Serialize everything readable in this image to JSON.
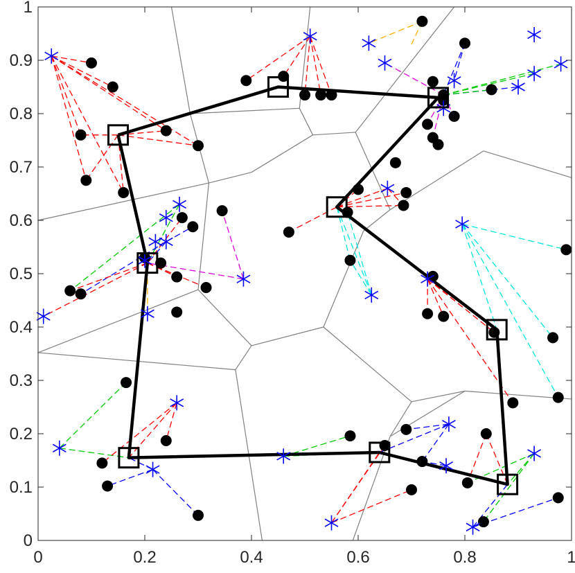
{
  "chart_data": {
    "type": "scatter",
    "title": "",
    "xlabel": "",
    "ylabel": "",
    "xlim": [
      0,
      1
    ],
    "ylim": [
      0,
      1
    ],
    "xticks": [
      0,
      0.2,
      0.4,
      0.6,
      0.8,
      1
    ],
    "xtick_labels": [
      "0",
      "0.2",
      "0.4",
      "0.6",
      "0.8",
      "1"
    ],
    "yticks": [
      0,
      0.1,
      0.2,
      0.3,
      0.4,
      0.5,
      0.6,
      0.7,
      0.8,
      0.9,
      1
    ],
    "ytick_labels": [
      "0",
      "0.1",
      "0.2",
      "0.3",
      "0.4",
      "0.5",
      "0.6",
      "0.7",
      "0.8",
      "0.9",
      "1"
    ],
    "grid": false,
    "box": true,
    "colors": {
      "route": "#000000",
      "voronoi": "#808080",
      "stars": "#0000ff",
      "red": "#ff0000",
      "green": "#00cc00",
      "blue": "#0000ff",
      "cyan": "#00e5e5",
      "magenta": "#dd00dd",
      "orange": "#ffb000"
    },
    "voronoi_edges": [
      [
        [
          0.25,
          1.0
        ],
        [
          0.285,
          0.8
        ]
      ],
      [
        [
          0.285,
          0.8
        ],
        [
          0.32,
          0.67
        ]
      ],
      [
        [
          0.285,
          0.8
        ],
        [
          0.49,
          0.81
        ]
      ],
      [
        [
          0.49,
          0.81
        ],
        [
          0.51,
          1.0
        ]
      ],
      [
        [
          0.49,
          0.81
        ],
        [
          0.515,
          0.76
        ]
      ],
      [
        [
          0.515,
          0.76
        ],
        [
          0.595,
          0.765
        ]
      ],
      [
        [
          0.595,
          0.765
        ],
        [
          0.66,
          0.62
        ]
      ],
      [
        [
          0.595,
          0.765
        ],
        [
          0.78,
          1.0
        ]
      ],
      [
        [
          0.515,
          0.76
        ],
        [
          0.4,
          0.69
        ]
      ],
      [
        [
          0.4,
          0.69
        ],
        [
          0.32,
          0.67
        ]
      ],
      [
        [
          0.32,
          0.67
        ],
        [
          0.0,
          0.6
        ]
      ],
      [
        [
          0.32,
          0.67
        ],
        [
          0.3,
          0.47
        ]
      ],
      [
        [
          0.3,
          0.47
        ],
        [
          0.4,
          0.365
        ]
      ],
      [
        [
          0.3,
          0.47
        ],
        [
          0.0,
          0.352
        ]
      ],
      [
        [
          0.4,
          0.365
        ],
        [
          0.37,
          0.32
        ]
      ],
      [
        [
          0.37,
          0.32
        ],
        [
          0.0,
          0.352
        ]
      ],
      [
        [
          0.37,
          0.32
        ],
        [
          0.42,
          0.0
        ]
      ],
      [
        [
          0.4,
          0.365
        ],
        [
          0.535,
          0.4
        ]
      ],
      [
        [
          0.535,
          0.4
        ],
        [
          0.61,
          0.58
        ]
      ],
      [
        [
          0.66,
          0.62
        ],
        [
          0.61,
          0.58
        ]
      ],
      [
        [
          0.535,
          0.4
        ],
        [
          0.7,
          0.26
        ]
      ],
      [
        [
          0.66,
          0.62
        ],
        [
          0.835,
          0.73
        ]
      ],
      [
        [
          0.835,
          0.73
        ],
        [
          1.0,
          0.68
        ]
      ],
      [
        [
          0.7,
          0.26
        ],
        [
          0.66,
          0.195
        ]
      ],
      [
        [
          0.7,
          0.26
        ],
        [
          0.8,
          0.28
        ]
      ],
      [
        [
          0.8,
          0.28
        ],
        [
          1.0,
          0.265
        ]
      ],
      [
        [
          0.66,
          0.195
        ],
        [
          0.59,
          0.0
        ]
      ],
      [
        [
          0.66,
          0.195
        ],
        [
          0.8,
          0.28
        ]
      ]
    ],
    "route": [
      [
        0.15,
        0.76
      ],
      [
        0.45,
        0.85
      ],
      [
        0.75,
        0.83
      ],
      [
        0.56,
        0.625
      ],
      [
        0.86,
        0.395
      ],
      [
        0.88,
        0.105
      ],
      [
        0.64,
        0.165
      ],
      [
        0.17,
        0.155
      ],
      [
        0.205,
        0.52
      ],
      [
        0.15,
        0.76
      ]
    ],
    "centers": [
      [
        0.15,
        0.76
      ],
      [
        0.45,
        0.85
      ],
      [
        0.75,
        0.83
      ],
      [
        0.56,
        0.625
      ],
      [
        0.86,
        0.395
      ],
      [
        0.88,
        0.105
      ],
      [
        0.64,
        0.165
      ],
      [
        0.17,
        0.155
      ],
      [
        0.205,
        0.52
      ]
    ],
    "dots": [
      [
        0.1,
        0.895
      ],
      [
        0.14,
        0.85
      ],
      [
        0.08,
        0.76
      ],
      [
        0.09,
        0.675
      ],
      [
        0.16,
        0.652
      ],
      [
        0.24,
        0.768
      ],
      [
        0.3,
        0.74
      ],
      [
        0.39,
        0.862
      ],
      [
        0.46,
        0.87
      ],
      [
        0.5,
        0.835
      ],
      [
        0.53,
        0.835
      ],
      [
        0.55,
        0.835
      ],
      [
        0.72,
        0.973
      ],
      [
        0.8,
        0.932
      ],
      [
        0.85,
        0.845
      ],
      [
        0.74,
        0.86
      ],
      [
        0.76,
        0.825
      ],
      [
        0.73,
        0.78
      ],
      [
        0.74,
        0.755
      ],
      [
        0.75,
        0.742
      ],
      [
        0.78,
        0.795
      ],
      [
        0.76,
        0.835
      ],
      [
        0.67,
        0.708
      ],
      [
        0.6,
        0.658
      ],
      [
        0.58,
        0.615
      ],
      [
        0.47,
        0.578
      ],
      [
        0.69,
        0.652
      ],
      [
        0.685,
        0.628
      ],
      [
        0.585,
        0.525
      ],
      [
        0.74,
        0.495
      ],
      [
        0.73,
        0.425
      ],
      [
        0.76,
        0.42
      ],
      [
        0.855,
        0.39
      ],
      [
        0.965,
        0.38
      ],
      [
        0.99,
        0.545
      ],
      [
        0.975,
        0.268
      ],
      [
        0.89,
        0.258
      ],
      [
        0.84,
        0.2
      ],
      [
        0.805,
        0.108
      ],
      [
        0.835,
        0.035
      ],
      [
        0.975,
        0.08
      ],
      [
        0.585,
        0.196
      ],
      [
        0.69,
        0.208
      ],
      [
        0.65,
        0.178
      ],
      [
        0.72,
        0.148
      ],
      [
        0.7,
        0.095
      ],
      [
        0.165,
        0.296
      ],
      [
        0.24,
        0.187
      ],
      [
        0.12,
        0.145
      ],
      [
        0.13,
        0.102
      ],
      [
        0.3,
        0.047
      ],
      [
        0.345,
        0.618
      ],
      [
        0.27,
        0.605
      ],
      [
        0.29,
        0.588
      ],
      [
        0.2,
        0.53
      ],
      [
        0.23,
        0.52
      ],
      [
        0.26,
        0.494
      ],
      [
        0.26,
        0.428
      ],
      [
        0.315,
        0.474
      ],
      [
        0.06,
        0.468
      ],
      [
        0.08,
        0.462
      ]
    ],
    "stars": [
      [
        0.025,
        0.908
      ],
      [
        0.51,
        0.945
      ],
      [
        0.62,
        0.932
      ],
      [
        0.65,
        0.895
      ],
      [
        0.78,
        0.862
      ],
      [
        0.93,
        0.948
      ],
      [
        0.98,
        0.893
      ],
      [
        0.93,
        0.875
      ],
      [
        0.9,
        0.85
      ],
      [
        0.76,
        0.81
      ],
      [
        0.655,
        0.66
      ],
      [
        0.625,
        0.46
      ],
      [
        0.795,
        0.593
      ],
      [
        0.73,
        0.49
      ],
      [
        0.93,
        0.163
      ],
      [
        0.815,
        0.025
      ],
      [
        0.77,
        0.218
      ],
      [
        0.765,
        0.14
      ],
      [
        0.46,
        0.158
      ],
      [
        0.55,
        0.033
      ],
      [
        0.26,
        0.258
      ],
      [
        0.215,
        0.133
      ],
      [
        0.04,
        0.173
      ],
      [
        0.265,
        0.63
      ],
      [
        0.24,
        0.605
      ],
      [
        0.24,
        0.56
      ],
      [
        0.22,
        0.56
      ],
      [
        0.205,
        0.425
      ],
      [
        0.2,
        0.525
      ],
      [
        0.385,
        0.49
      ],
      [
        0.01,
        0.42
      ]
    ],
    "links": [
      {
        "color": "red",
        "from": [
          0.025,
          0.908
        ],
        "to": [
          [
            0.1,
            0.895
          ],
          [
            0.14,
            0.85
          ],
          [
            0.08,
            0.76
          ],
          [
            0.16,
            0.652
          ],
          [
            0.24,
            0.768
          ],
          [
            0.3,
            0.74
          ],
          [
            0.09,
            0.675
          ]
        ]
      },
      {
        "color": "red",
        "from": [
          0.15,
          0.76
        ],
        "to": [
          [
            0.08,
            0.76
          ],
          [
            0.24,
            0.768
          ],
          [
            0.3,
            0.74
          ],
          [
            0.09,
            0.675
          ],
          [
            0.16,
            0.652
          ]
        ]
      },
      {
        "color": "red",
        "from": [
          0.51,
          0.945
        ],
        "to": [
          [
            0.46,
            0.87
          ],
          [
            0.5,
            0.835
          ],
          [
            0.53,
            0.835
          ],
          [
            0.39,
            0.862
          ],
          [
            0.55,
            0.835
          ]
        ]
      },
      {
        "color": "orange",
        "from": [
          0.72,
          0.973
        ],
        "to": [
          [
            0.62,
            0.932
          ],
          [
            0.7,
            0.93
          ]
        ]
      },
      {
        "color": "blue",
        "from": [
          0.8,
          0.932
        ],
        "to": [
          [
            0.78,
            0.862
          ],
          [
            0.76,
            0.835
          ]
        ]
      },
      {
        "color": "blue",
        "from": [
          0.76,
          0.835
        ],
        "to": [
          [
            0.9,
            0.85
          ]
        ]
      },
      {
        "color": "green",
        "from": [
          0.76,
          0.835
        ],
        "to": [
          [
            0.98,
            0.893
          ],
          [
            0.93,
            0.875
          ],
          [
            0.85,
            0.845
          ]
        ]
      },
      {
        "color": "magenta",
        "from": [
          0.76,
          0.835
        ],
        "to": [
          [
            0.65,
            0.895
          ],
          [
            0.73,
            0.78
          ],
          [
            0.74,
            0.755
          ],
          [
            0.78,
            0.795
          ],
          [
            0.76,
            0.81
          ]
        ]
      },
      {
        "color": "red",
        "from": [
          0.56,
          0.625
        ],
        "to": [
          [
            0.47,
            0.578
          ],
          [
            0.655,
            0.66
          ],
          [
            0.685,
            0.628
          ],
          [
            0.69,
            0.652
          ],
          [
            0.6,
            0.658
          ]
        ]
      },
      {
        "color": "red",
        "from": [
          0.655,
          0.66
        ],
        "to": [
          [
            0.685,
            0.628
          ]
        ]
      },
      {
        "color": "cyan",
        "from": [
          0.56,
          0.625
        ],
        "to": [
          [
            0.625,
            0.46
          ],
          [
            0.585,
            0.525
          ],
          [
            0.58,
            0.615
          ]
        ]
      },
      {
        "color": "cyan",
        "from": [
          0.625,
          0.46
        ],
        "to": [
          [
            0.58,
            0.615
          ],
          [
            0.585,
            0.525
          ]
        ]
      },
      {
        "color": "cyan",
        "from": [
          0.795,
          0.593
        ],
        "to": [
          [
            0.86,
            0.395
          ],
          [
            0.965,
            0.38
          ],
          [
            0.99,
            0.545
          ],
          [
            0.975,
            0.268
          ]
        ]
      },
      {
        "color": "red",
        "from": [
          0.73,
          0.49
        ],
        "to": [
          [
            0.86,
            0.395
          ],
          [
            0.73,
            0.425
          ],
          [
            0.76,
            0.42
          ],
          [
            0.855,
            0.39
          ],
          [
            0.89,
            0.258
          ]
        ]
      },
      {
        "color": "green",
        "from": [
          0.93,
          0.163
        ],
        "to": [
          [
            0.88,
            0.105
          ],
          [
            0.835,
            0.035
          ],
          [
            0.805,
            0.108
          ]
        ]
      },
      {
        "color": "blue",
        "from": [
          0.815,
          0.025
        ],
        "to": [
          [
            0.88,
            0.105
          ],
          [
            0.975,
            0.08
          ]
        ]
      },
      {
        "color": "red",
        "from": [
          0.84,
          0.2
        ],
        "to": [
          [
            0.88,
            0.105
          ],
          [
            0.805,
            0.108
          ]
        ]
      },
      {
        "color": "blue",
        "from": [
          0.77,
          0.218
        ],
        "to": [
          [
            0.64,
            0.165
          ],
          [
            0.69,
            0.208
          ],
          [
            0.72,
            0.148
          ]
        ]
      },
      {
        "color": "blue",
        "from": [
          0.765,
          0.14
        ],
        "to": [
          [
            0.72,
            0.148
          ]
        ]
      },
      {
        "color": "green",
        "from": [
          0.46,
          0.158
        ],
        "to": [
          [
            0.585,
            0.196
          ],
          [
            0.64,
            0.165
          ]
        ]
      },
      {
        "color": "red",
        "from": [
          0.55,
          0.033
        ],
        "to": [
          [
            0.64,
            0.165
          ],
          [
            0.65,
            0.178
          ],
          [
            0.7,
            0.095
          ]
        ]
      },
      {
        "color": "green",
        "from": [
          0.04,
          0.173
        ],
        "to": [
          [
            0.165,
            0.296
          ],
          [
            0.17,
            0.155
          ]
        ]
      },
      {
        "color": "red",
        "from": [
          0.26,
          0.258
        ],
        "to": [
          [
            0.17,
            0.155
          ],
          [
            0.12,
            0.145
          ],
          [
            0.24,
            0.187
          ]
        ]
      },
      {
        "color": "blue",
        "from": [
          0.215,
          0.133
        ],
        "to": [
          [
            0.17,
            0.155
          ],
          [
            0.13,
            0.102
          ],
          [
            0.3,
            0.047
          ]
        ]
      },
      {
        "color": "green",
        "from": [
          0.265,
          0.63
        ],
        "to": [
          [
            0.205,
            0.52
          ],
          [
            0.06,
            0.468
          ]
        ]
      },
      {
        "color": "blue",
        "from": [
          0.24,
          0.56
        ],
        "to": [
          [
            0.205,
            0.52
          ],
          [
            0.08,
            0.462
          ],
          [
            0.29,
            0.588
          ]
        ]
      },
      {
        "color": "magenta",
        "from": [
          0.385,
          0.49
        ],
        "to": [
          [
            0.205,
            0.52
          ],
          [
            0.345,
            0.618
          ]
        ]
      },
      {
        "color": "red",
        "from": [
          0.205,
          0.52
        ],
        "to": [
          [
            0.01,
            0.42
          ],
          [
            0.06,
            0.468
          ],
          [
            0.26,
            0.494
          ],
          [
            0.315,
            0.474
          ],
          [
            0.27,
            0.605
          ]
        ]
      },
      {
        "color": "orange",
        "from": [
          0.205,
          0.425
        ],
        "to": [
          [
            0.205,
            0.52
          ]
        ]
      }
    ]
  }
}
